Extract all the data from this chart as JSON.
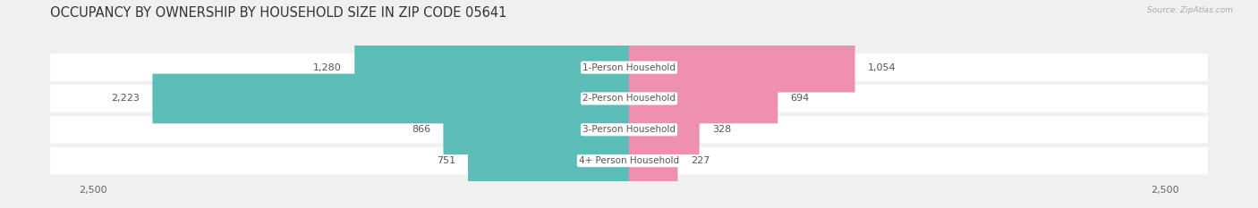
{
  "title": "OCCUPANCY BY OWNERSHIP BY HOUSEHOLD SIZE IN ZIP CODE 05641",
  "source": "Source: ZipAtlas.com",
  "categories": [
    "1-Person Household",
    "2-Person Household",
    "3-Person Household",
    "4+ Person Household"
  ],
  "owner_values": [
    1280,
    2223,
    866,
    751
  ],
  "renter_values": [
    1054,
    694,
    328,
    227
  ],
  "owner_color": "#5bbcb8",
  "renter_color": "#f090b0",
  "background_color": "#f0f0f0",
  "bar_background": "#ffffff",
  "max_scale": 2500,
  "bar_height": 0.6,
  "title_fontsize": 10.5,
  "label_fontsize": 8.0,
  "tick_fontsize": 8.0,
  "legend_fontsize": 8.0,
  "category_fontsize": 7.5
}
